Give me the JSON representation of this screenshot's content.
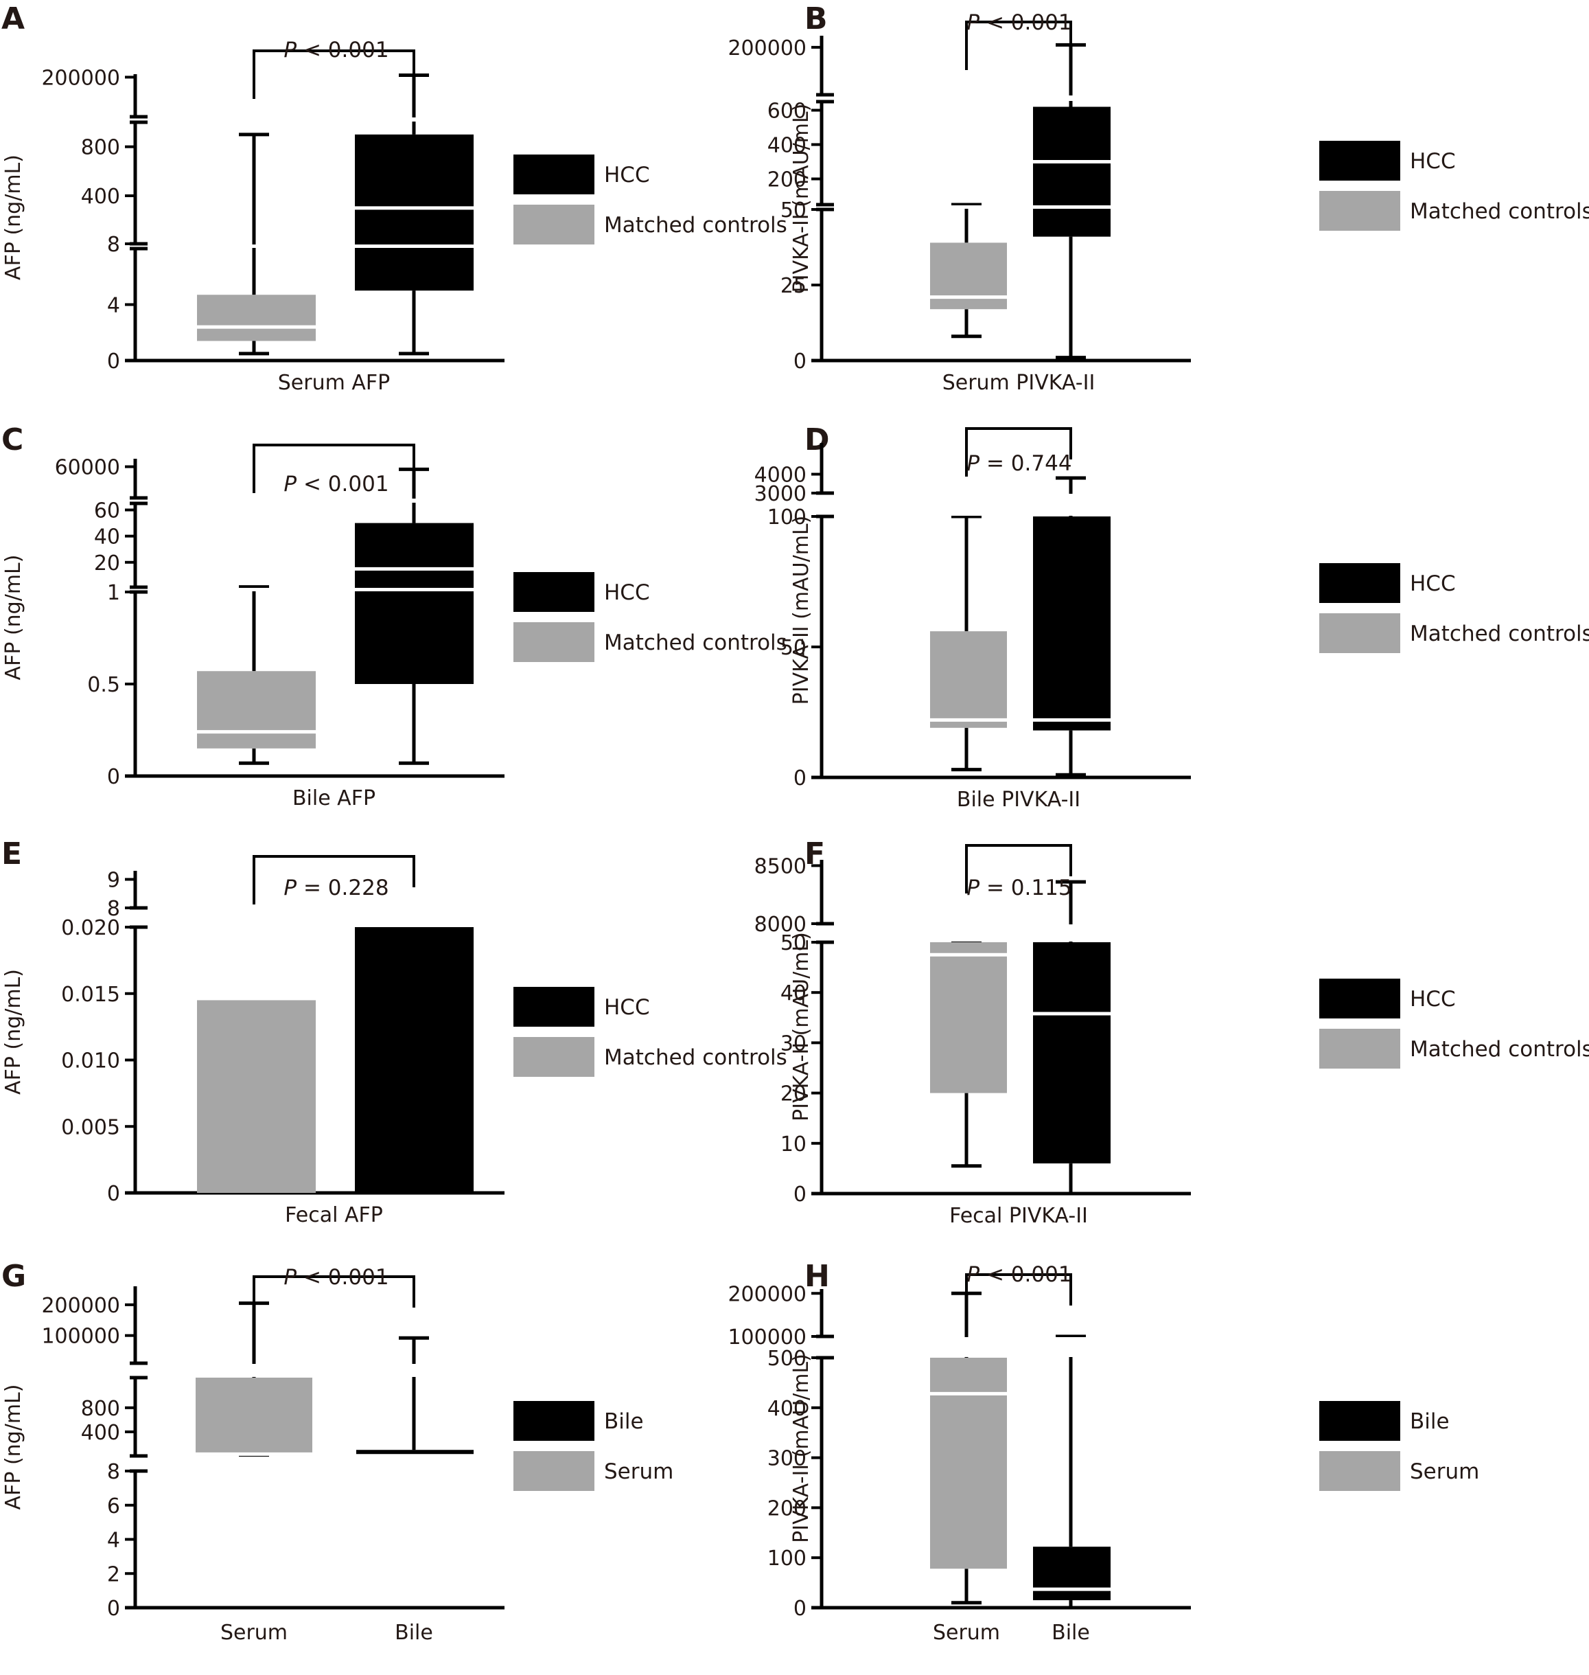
{
  "figure": {
    "colors": {
      "hcc": "#000000",
      "control": "#a6a6a6",
      "median": "#ffffff",
      "axis": "#000000",
      "text": "#231815"
    }
  },
  "chart_data": [
    {
      "panel": "A",
      "type": "box",
      "ylabel": "AFP (ng/mL)",
      "xlabel": "Serum AFP",
      "xcategories": [],
      "p_value": "P < 0.001",
      "p_italic": "P",
      "p_rest": "< 0.001",
      "legend": [
        {
          "label": "HCC",
          "color": "#000000"
        },
        {
          "label": "Matched controls",
          "color": "#a6a6a6"
        }
      ],
      "axis_segments": [
        {
          "ticks": [
            0,
            4
          ],
          "range": [
            0,
            8
          ]
        },
        {
          "ticks": [
            8,
            400,
            800
          ],
          "range": [
            8,
            1000
          ]
        },
        {
          "ticks": [
            200000
          ],
          "range": [
            1000,
            260000
          ]
        }
      ],
      "segment_axis_breaks": [
        {
          "between": [
            0,
            1
          ],
          "style": "double"
        },
        {
          "between": [
            1,
            2
          ],
          "style": "double"
        }
      ],
      "tick_labels": [
        "0",
        "4",
        "8",
        "400",
        "800",
        "200000"
      ],
      "series": [
        {
          "name": "Matched controls",
          "color": "#a6a6a6",
          "whisker_low": 0.5,
          "q1": 1.4,
          "median": 2.4,
          "q3": 4.7,
          "whisker_high": 900
        },
        {
          "name": "HCC",
          "color": "#000000",
          "whisker_low": 0.5,
          "q1": 5.0,
          "median": 300,
          "q3": 900,
          "whisker_high": 210000
        }
      ]
    },
    {
      "panel": "B",
      "type": "box",
      "ylabel": "PIVKA-II (mAU/mL)",
      "xlabel": "Serum PIVKA-II",
      "xcategories": [],
      "p_value": "P < 0.001",
      "p_italic": "P",
      "p_rest": "< 0.001",
      "legend": [
        {
          "label": "HCC",
          "color": "#000000"
        },
        {
          "label": "Matched controls",
          "color": "#a6a6a6"
        }
      ],
      "axis_segments": [
        {
          "ticks": [
            0,
            25,
            50
          ],
          "range": [
            0,
            50
          ]
        },
        {
          "ticks": [
            50,
            200,
            400,
            600
          ],
          "range": [
            50,
            650
          ]
        },
        {
          "ticks": [
            200000
          ],
          "range": [
            650,
            240000
          ]
        }
      ],
      "tick_labels": [
        "0",
        "25",
        "50",
        "200",
        "400",
        "600",
        "200000"
      ],
      "series": [
        {
          "name": "Matched controls",
          "color": "#a6a6a6",
          "whisker_low": 8,
          "q1": 17,
          "median": 21,
          "q3": 39,
          "whisker_high": 50
        },
        {
          "name": "HCC",
          "color": "#000000",
          "whisker_low": 1,
          "q1": 41,
          "median": 300,
          "q3": 620,
          "whisker_high": 210000
        }
      ]
    },
    {
      "panel": "C",
      "type": "box",
      "ylabel": "AFP (ng/mL)",
      "xlabel": "Bile AFP",
      "xcategories": [],
      "p_value": "P < 0.001",
      "p_italic": "P",
      "p_rest": "< 0.001",
      "legend": [
        {
          "label": "HCC",
          "color": "#000000"
        },
        {
          "label": "Matched controls",
          "color": "#a6a6a6"
        }
      ],
      "axis_segments": [
        {
          "ticks": [
            0,
            0.5,
            1
          ],
          "range": [
            0,
            1
          ]
        },
        {
          "ticks": [
            1,
            20,
            40,
            60
          ],
          "range": [
            1,
            65
          ]
        },
        {
          "ticks": [
            60000
          ],
          "range": [
            65,
            70000
          ]
        }
      ],
      "tick_labels": [
        "0",
        "0.5",
        "1",
        "20",
        "40",
        "60",
        "60000"
      ],
      "series": [
        {
          "name": "Matched controls",
          "color": "#a6a6a6",
          "whisker_low": 0.07,
          "q1": 0.15,
          "median": 0.24,
          "q3": 0.57,
          "whisker_high": 1.2
        },
        {
          "name": "HCC",
          "color": "#000000",
          "whisker_low": 0.07,
          "q1": 0.5,
          "median": 15,
          "q3": 50,
          "whisker_high": 55000
        }
      ]
    },
    {
      "panel": "D",
      "type": "box",
      "ylabel": "PIVKA-II (mAU/mL)",
      "xlabel": "Bile PIVKA-II",
      "xcategories": [],
      "p_value": "P = 0.744",
      "p_italic": "P",
      "p_rest": "= 0.744",
      "legend": [
        {
          "label": "HCC",
          "color": "#000000"
        },
        {
          "label": "Matched controls",
          "color": "#a6a6a6"
        }
      ],
      "axis_segments": [
        {
          "ticks": [
            0,
            50,
            100
          ],
          "range": [
            0,
            100
          ]
        },
        {
          "ticks": [
            3000,
            4000
          ],
          "range": [
            3000,
            4600
          ]
        }
      ],
      "tick_labels": [
        "0",
        "50",
        "100",
        "3000",
        "4000"
      ],
      "series": [
        {
          "name": "Matched controls",
          "color": "#a6a6a6",
          "whisker_low": 3,
          "q1": 19,
          "median": 22,
          "q3": 56,
          "whisker_high": 100
        },
        {
          "name": "HCC",
          "color": "#000000",
          "whisker_low": 1,
          "q1": 18,
          "median": 22,
          "q3": 102,
          "whisker_high": 3800
        }
      ]
    },
    {
      "panel": "E",
      "type": "bar",
      "ylabel": "AFP (ng/mL)",
      "xlabel": "Fecal AFP",
      "xcategories": [],
      "p_value": "P = 0.228",
      "p_italic": "P",
      "p_rest": "= 0.228",
      "legend": [
        {
          "label": "HCC",
          "color": "#000000"
        },
        {
          "label": "Matched controls",
          "color": "#a6a6a6"
        }
      ],
      "axis_segments": [
        {
          "ticks": [
            0,
            0.005,
            0.01,
            0.015,
            0.02
          ],
          "range": [
            0,
            0.02
          ]
        },
        {
          "ticks": [
            8,
            9
          ],
          "range": [
            8,
            9.3
          ]
        }
      ],
      "tick_labels": [
        "0",
        "0.005",
        "0.010",
        "0.015",
        "0.020",
        "8",
        "9"
      ],
      "series": [
        {
          "name": "Matched controls",
          "color": "#a6a6a6",
          "value": 0.0145,
          "whisker_high": 8
        },
        {
          "name": "HCC",
          "color": "#000000",
          "value": 0.02,
          "whisker_high": 8
        }
      ]
    },
    {
      "panel": "F",
      "type": "box",
      "ylabel": "PIVKA-II (mAU/mL)",
      "xlabel": "Fecal PIVKA-II",
      "xcategories": [],
      "p_value": "P = 0.115",
      "p_italic": "P",
      "p_rest": "= 0.115",
      "legend": [
        {
          "label": "HCC",
          "color": "#000000"
        },
        {
          "label": "Matched controls",
          "color": "#a6a6a6"
        }
      ],
      "axis_segments": [
        {
          "ticks": [
            0,
            10,
            20,
            30,
            40,
            50
          ],
          "range": [
            0,
            50
          ]
        },
        {
          "ticks": [
            8000,
            8500
          ],
          "range": [
            8000,
            8550
          ]
        }
      ],
      "tick_labels": [
        "0",
        "10",
        "20",
        "30",
        "40",
        "50",
        "8000",
        "8500"
      ],
      "series": [
        {
          "name": "Matched controls",
          "color": "#a6a6a6",
          "whisker_low": 5.5,
          "q1": 20,
          "median": 47.5,
          "q3": 51,
          "whisker_high": 7990
        },
        {
          "name": "HCC",
          "color": "#000000",
          "whisker_low": 0,
          "q1": 6,
          "median": 35.8,
          "q3": 51,
          "whisker_high": 8360
        }
      ]
    },
    {
      "panel": "G",
      "type": "box",
      "ylabel": "AFP (ng/mL)",
      "xlabel": "",
      "xcategories": [
        "Serum",
        "Bile"
      ],
      "p_value": "P < 0.001",
      "p_italic": "P",
      "p_rest": "< 0.001",
      "legend": [
        {
          "label": "Bile",
          "color": "#000000"
        },
        {
          "label": "Serum",
          "color": "#a6a6a6"
        }
      ],
      "axis_segments": [
        {
          "ticks": [
            0,
            2,
            4,
            6,
            8
          ],
          "range": [
            0,
            8
          ]
        },
        {
          "ticks": [
            400,
            800
          ],
          "range": [
            0,
            1300
          ]
        },
        {
          "ticks": [
            100000,
            200000
          ],
          "range": [
            10000,
            260000
          ]
        }
      ],
      "tick_labels": [
        "0",
        "2",
        "4",
        "6",
        "8",
        "400",
        "800",
        "100000",
        "200000"
      ],
      "series": [
        {
          "name": "Serum",
          "color": "#a6a6a6",
          "whisker_low": 0.9,
          "q1": 4.9,
          "median": 30,
          "q3": 1300,
          "whisker_high": 205000
        },
        {
          "name": "Bile",
          "color": "#000000",
          "whisker_low": 0,
          "q1": 0.8,
          "median": 3.4,
          "q3": 100,
          "whisker_high": 92000
        }
      ]
    },
    {
      "panel": "H",
      "type": "box",
      "ylabel": "PIVKA-II (mAU/mL)",
      "xlabel": "",
      "xcategories": [
        "Serum",
        "Bile"
      ],
      "p_value": "P < 0.001",
      "p_italic": "P",
      "p_rest": "< 0.001",
      "legend": [
        {
          "label": "Bile",
          "color": "#000000"
        },
        {
          "label": "Serum",
          "color": "#a6a6a6"
        }
      ],
      "axis_segments": [
        {
          "ticks": [
            0,
            100,
            200,
            300,
            400,
            500
          ],
          "range": [
            0,
            500
          ]
        },
        {
          "ticks": [
            100000,
            200000
          ],
          "range": [
            100000,
            210000
          ]
        }
      ],
      "tick_labels": [
        "0",
        "100",
        "200",
        "300",
        "400",
        "500",
        "100000",
        "200000"
      ],
      "series": [
        {
          "name": "Serum",
          "color": "#a6a6a6",
          "whisker_low": 10,
          "q1": 78,
          "median": 428,
          "q3": 506,
          "whisker_high": 200000
        },
        {
          "name": "Bile",
          "color": "#000000",
          "whisker_low": 0,
          "q1": 15,
          "median": 37,
          "q3": 122,
          "whisker_high": 100000
        }
      ]
    }
  ]
}
